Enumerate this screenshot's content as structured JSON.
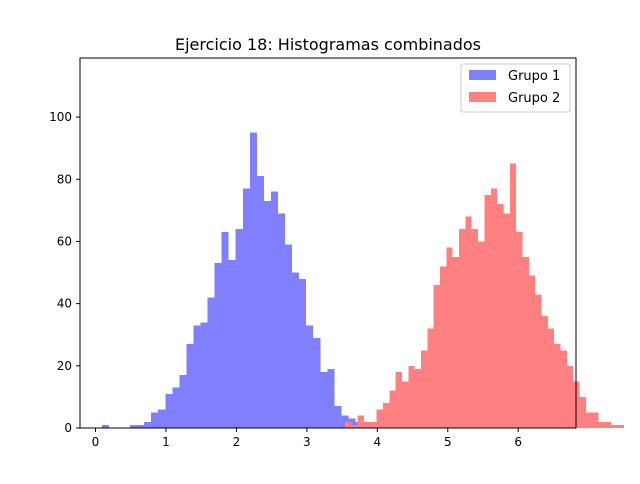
{
  "chart_data": {
    "type": "histogram",
    "title": "Ejercicio 18: Histogramas combinados",
    "xlabel": "",
    "ylabel": "",
    "xlim": [
      -0.22,
      6.82
    ],
    "ylim": [
      0,
      119
    ],
    "xticks": [
      "0",
      "1",
      "2",
      "3",
      "4",
      "5",
      "6"
    ],
    "yticks": [
      "0",
      "20",
      "40",
      "60",
      "80",
      "100"
    ],
    "grid": false,
    "legend_position": "top-right",
    "series": [
      {
        "name": "Grupo 1",
        "color": "#8080ff",
        "bin_start": 0.09,
        "bin_width": 0.1,
        "counts": [
          1,
          0,
          0,
          0,
          1,
          1,
          2,
          5,
          6,
          11,
          13,
          17,
          27,
          33,
          34,
          42,
          53,
          63,
          54,
          64,
          77,
          95,
          81,
          73,
          76,
          69,
          59,
          50,
          48,
          33,
          29,
          18,
          19,
          7,
          4,
          3,
          2
        ]
      },
      {
        "name": "Grupo 2",
        "color": "#ff8080",
        "bin_start": 3.54,
        "bin_width": 0.09,
        "counts": [
          2,
          1,
          4,
          2,
          2,
          6,
          8,
          12,
          18,
          15,
          20,
          19,
          25,
          32,
          46,
          52,
          58,
          55,
          64,
          68,
          64,
          60,
          75,
          77,
          72,
          69,
          85,
          63,
          55,
          49,
          43,
          36,
          32,
          27,
          25,
          20,
          15,
          10,
          5,
          5,
          2,
          2,
          1,
          1
        ]
      }
    ]
  }
}
